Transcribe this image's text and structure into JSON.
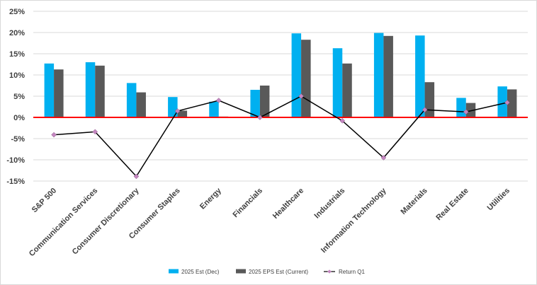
{
  "chart_data": {
    "type": "bar",
    "categories": [
      "S&P 500",
      "Communication Services",
      "Consumer Discretionary",
      "Consumer Staples",
      "Energy",
      "Financials",
      "Healthcare",
      "Industrials",
      "Information Technology",
      "Materials",
      "Real Estate",
      "Utilities"
    ],
    "series": [
      {
        "name": "2025 Est (Dec)",
        "type": "bar",
        "color": "#00b0f0",
        "values": [
          12.7,
          13.0,
          8.1,
          4.8,
          3.7,
          6.5,
          19.8,
          16.3,
          19.9,
          19.3,
          4.6,
          7.3
        ]
      },
      {
        "name": "2025 EPS Est (Current)",
        "type": "bar",
        "color": "#595959",
        "values": [
          11.3,
          12.2,
          5.9,
          1.6,
          0.2,
          7.5,
          18.3,
          12.7,
          19.2,
          8.3,
          3.4,
          6.6
        ]
      },
      {
        "name": "Return Q1",
        "type": "line",
        "color": "#000000",
        "marker_color": "#c486c0",
        "values": [
          -4.1,
          -3.4,
          -13.9,
          1.5,
          4.0,
          0.0,
          5.0,
          -0.8,
          -9.5,
          1.8,
          1.3,
          3.5
        ]
      }
    ],
    "ylim": [
      -15,
      25
    ],
    "yticks": [
      "-15%",
      "-10%",
      "-5%",
      "0%",
      "5%",
      "10%",
      "15%",
      "20%",
      "25%"
    ],
    "ytick_values": [
      -15,
      -10,
      -5,
      0,
      5,
      10,
      15,
      20,
      25
    ],
    "zero_line_color": "#ff0000",
    "grid": true,
    "legend_position": "bottom"
  }
}
